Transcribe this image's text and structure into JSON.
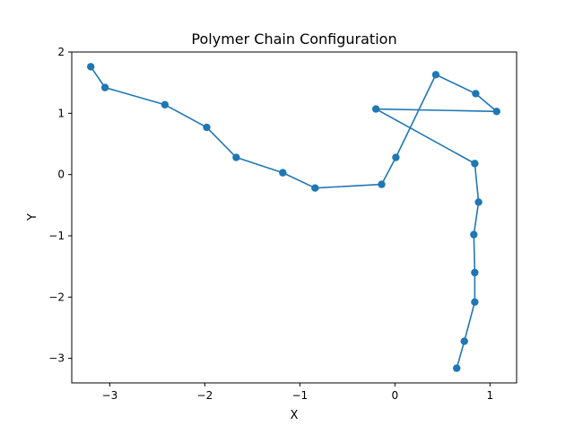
{
  "chart_data": {
    "type": "line",
    "title": "Polymer Chain Configuration",
    "xlabel": "X",
    "ylabel": "Y",
    "xlim": [
      -3.4,
      1.28
    ],
    "ylim": [
      -3.4,
      2.0
    ],
    "xticks": [
      -3,
      -2,
      -1,
      0,
      1
    ],
    "xtick_labels": [
      "−3",
      "−2",
      "−1",
      "0",
      "1"
    ],
    "yticks": [
      2,
      1,
      0,
      -1,
      -2,
      -3
    ],
    "ytick_labels": [
      "2",
      "1",
      "0",
      "−1",
      "−2",
      "−3"
    ],
    "grid": false,
    "marker": "circle",
    "series": [
      {
        "color": "#1f77b4",
        "points": [
          [
            -3.2,
            1.76
          ],
          [
            -3.05,
            1.42
          ],
          [
            -2.42,
            1.14
          ],
          [
            -1.98,
            0.77
          ],
          [
            -1.67,
            0.28
          ],
          [
            -1.18,
            0.03
          ],
          [
            -0.84,
            -0.22
          ],
          [
            -0.14,
            -0.16
          ],
          [
            0.01,
            0.28
          ],
          [
            0.43,
            1.63
          ],
          [
            0.85,
            1.32
          ],
          [
            1.07,
            1.03
          ],
          [
            -0.2,
            1.07
          ],
          [
            0.84,
            0.18
          ],
          [
            0.88,
            -0.45
          ],
          [
            0.83,
            -0.98
          ],
          [
            0.84,
            -1.6
          ],
          [
            0.84,
            -2.08
          ],
          [
            0.73,
            -2.72
          ],
          [
            0.65,
            -3.16
          ]
        ]
      }
    ]
  }
}
